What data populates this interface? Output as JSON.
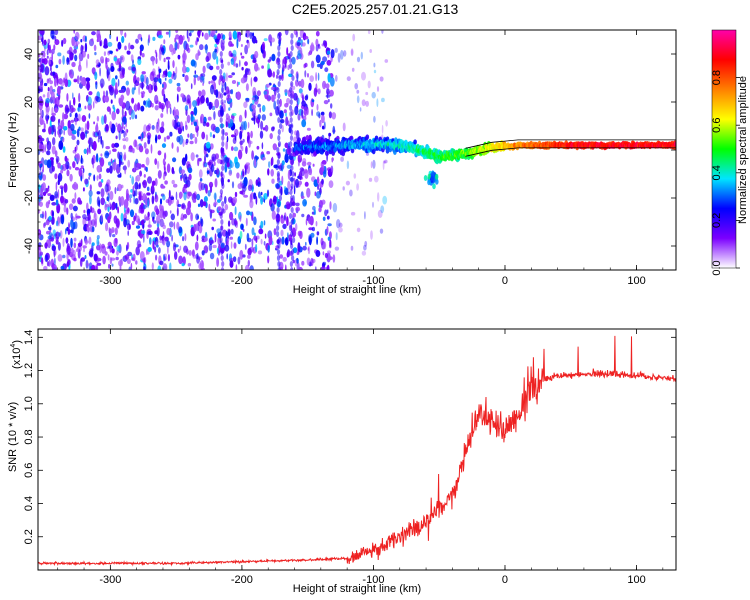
{
  "title": "C2E5.2025.257.01.21.G13",
  "chart_data": [
    {
      "type": "heatmap",
      "xlabel": "Height of straight line (km)",
      "ylabel": "Frequency (Hz)",
      "xlim": [
        -355,
        130
      ],
      "ylim": [
        -50,
        50
      ],
      "x_ticks": [
        -300,
        -200,
        -100,
        0,
        100
      ],
      "y_ticks": [
        -40,
        -20,
        0,
        20,
        40
      ],
      "grid": false,
      "colorbar": {
        "label": "Normalized spectral amplitude",
        "range": [
          0.0,
          1.0
        ],
        "ticks": [
          "0.0",
          "0.2",
          "0.4",
          "0.6",
          "0.8"
        ],
        "colors": [
          "#ffffff",
          "#7b00ff",
          "#0000ff",
          "#00e5ff",
          "#00ff00",
          "#ffff00",
          "#ff8000",
          "#ff0000",
          "#ff00aa"
        ]
      },
      "features": {
        "noise_region_x": [
          -355,
          -130
        ],
        "signal_line": [
          {
            "x": -160,
            "f": 1.0,
            "amp": 0.3
          },
          {
            "x": -120,
            "f": 2.0,
            "amp": 0.35
          },
          {
            "x": -90,
            "f": 2.5,
            "amp": 0.4
          },
          {
            "x": -70,
            "f": 1.0,
            "amp": 0.45
          },
          {
            "x": -50,
            "f": -3.0,
            "amp": 0.5
          },
          {
            "x": -30,
            "f": -1.5,
            "amp": 0.55
          },
          {
            "x": -10,
            "f": 1.0,
            "amp": 0.65
          },
          {
            "x": 10,
            "f": 2.0,
            "amp": 0.75
          },
          {
            "x": 50,
            "f": 2.0,
            "amp": 0.9
          },
          {
            "x": 100,
            "f": 2.0,
            "amp": 0.9
          },
          {
            "x": 130,
            "f": 2.0,
            "amp": 0.9
          }
        ]
      }
    },
    {
      "type": "line",
      "xlabel": "Height of straight line (km)",
      "ylabel": "SNR (10 * v/v)",
      "y_multiplier": "(x10",
      "y_multiplier_exp": "4",
      "xlim": [
        -355,
        130
      ],
      "ylim": [
        0,
        1.45
      ],
      "x_ticks": [
        -300,
        -200,
        -100,
        0,
        100
      ],
      "y_ticks": [
        0.2,
        0.4,
        0.6,
        0.8,
        1.0,
        1.2,
        1.4
      ],
      "grid": false,
      "color": "#ee2222",
      "series": [
        {
          "x": [
            -355,
            -300,
            -250,
            -200,
            -150,
            -120,
            -100,
            -80,
            -60,
            -50,
            -40,
            -30,
            -20,
            -10,
            0,
            10,
            20,
            30,
            40,
            60,
            80,
            100,
            130
          ],
          "values": [
            0.04,
            0.04,
            0.04,
            0.05,
            0.06,
            0.07,
            0.12,
            0.2,
            0.28,
            0.35,
            0.45,
            0.7,
            0.95,
            0.9,
            0.85,
            0.95,
            1.08,
            1.15,
            1.17,
            1.18,
            1.18,
            1.17,
            1.15
          ]
        }
      ]
    }
  ]
}
